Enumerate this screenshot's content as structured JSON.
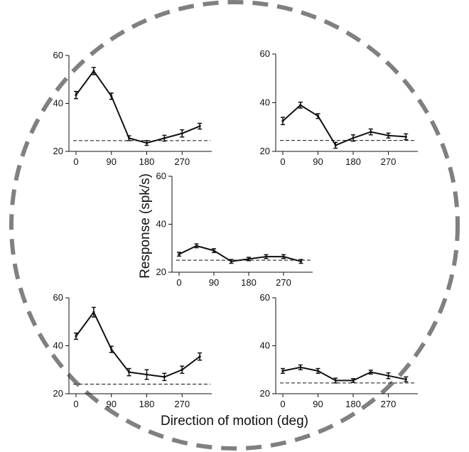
{
  "figure": {
    "xlabel": "Direction of motion (deg)",
    "ylabel": "Response (spk/s)",
    "circle_color": "#808080"
  },
  "chart_data": [
    {
      "type": "line",
      "panel": "top-left",
      "x": [
        0,
        45,
        90,
        135,
        180,
        225,
        270,
        315
      ],
      "y": [
        43.5,
        53.5,
        43.0,
        25.5,
        23.5,
        25.5,
        27.5,
        30.5
      ],
      "err": [
        1.5,
        1.5,
        1.3,
        1.0,
        1.0,
        1.2,
        1.5,
        1.2
      ],
      "baseline": 24.5,
      "ylim": [
        20,
        60
      ],
      "yticks": [
        20,
        40,
        60
      ],
      "xticks": [
        0,
        90,
        180,
        270
      ]
    },
    {
      "type": "line",
      "panel": "top-right",
      "x": [
        0,
        45,
        90,
        135,
        180,
        225,
        270,
        315
      ],
      "y": [
        32.5,
        39.0,
        34.5,
        22.5,
        25.5,
        28.0,
        26.5,
        26.0
      ],
      "err": [
        1.5,
        1.2,
        1.0,
        1.2,
        1.3,
        1.2,
        1.0,
        1.2
      ],
      "baseline": 24.5,
      "ylim": [
        20,
        60
      ],
      "yticks": [
        20,
        40,
        60
      ],
      "xticks": [
        0,
        90,
        180,
        270
      ]
    },
    {
      "type": "line",
      "panel": "center",
      "x": [
        0,
        45,
        90,
        135,
        180,
        225,
        270,
        315
      ],
      "y": [
        27.5,
        31.0,
        29.0,
        24.5,
        25.5,
        26.5,
        26.5,
        24.5
      ],
      "err": [
        0.8,
        0.8,
        0.8,
        0.8,
        0.7,
        0.8,
        0.8,
        0.8
      ],
      "baseline": 25.0,
      "ylim": [
        20,
        60
      ],
      "yticks": [
        20,
        40,
        60
      ],
      "xticks": [
        0,
        90,
        180,
        270
      ]
    },
    {
      "type": "line",
      "panel": "bottom-left",
      "x": [
        0,
        45,
        90,
        135,
        180,
        225,
        270,
        315
      ],
      "y": [
        44.0,
        54.0,
        38.5,
        29.0,
        28.0,
        27.0,
        30.0,
        35.5
      ],
      "err": [
        1.3,
        2.0,
        1.3,
        1.5,
        2.0,
        1.5,
        1.5,
        1.5
      ],
      "baseline": 24.0,
      "ylim": [
        20,
        60
      ],
      "yticks": [
        20,
        40,
        60
      ],
      "xticks": [
        0,
        90,
        180,
        270
      ]
    },
    {
      "type": "line",
      "panel": "bottom-right",
      "x": [
        0,
        45,
        90,
        135,
        180,
        225,
        270,
        315
      ],
      "y": [
        29.5,
        31.0,
        29.5,
        25.5,
        25.5,
        29.0,
        27.5,
        26.0
      ],
      "err": [
        1.0,
        1.0,
        1.0,
        1.0,
        0.8,
        0.8,
        1.2,
        1.0
      ],
      "baseline": 24.5,
      "ylim": [
        20,
        60
      ],
      "yticks": [
        20,
        40,
        60
      ],
      "xticks": [
        0,
        90,
        180,
        270
      ]
    }
  ]
}
